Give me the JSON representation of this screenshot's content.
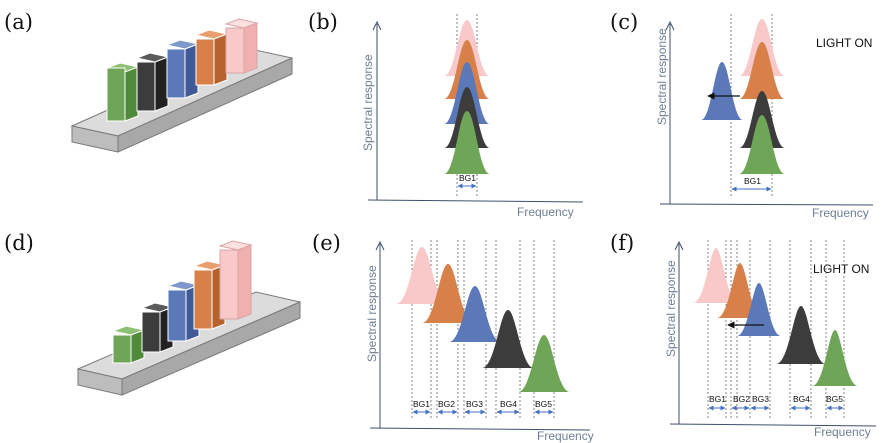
{
  "colors": {
    "pink": "#f9c8c8",
    "orange": "#d7804a",
    "blue": "#5b78b8",
    "black": "#3c3c3c",
    "green": "#6fa557",
    "axis": "#3f4f6f",
    "tray": "#cfcfcf",
    "bg_arrow": "#4472c4"
  },
  "panels": {
    "a": {
      "label": "(a)"
    },
    "b": {
      "label": "(b)",
      "ylabel": "Spectral response",
      "xlabel": "Frequency",
      "bands": [
        "BG1"
      ]
    },
    "c": {
      "label": "(c)",
      "ylabel": "Spectral response",
      "xlabel": "Frequency",
      "bands": [
        "BG1"
      ],
      "note": "LIGHT ON"
    },
    "d": {
      "label": "(d)"
    },
    "e": {
      "label": "(e)",
      "ylabel": "Spectral response",
      "xlabel": "Frequency",
      "bands": [
        "BG1",
        "BG2",
        "BG3",
        "BG4",
        "BG5"
      ]
    },
    "f": {
      "label": "(f)",
      "ylabel": "Spectral response",
      "xlabel": "Frequency",
      "bands": [
        "BG1",
        "BG2",
        "BG3",
        "BG4",
        "BG5"
      ],
      "note": "LIGHT ON"
    }
  }
}
